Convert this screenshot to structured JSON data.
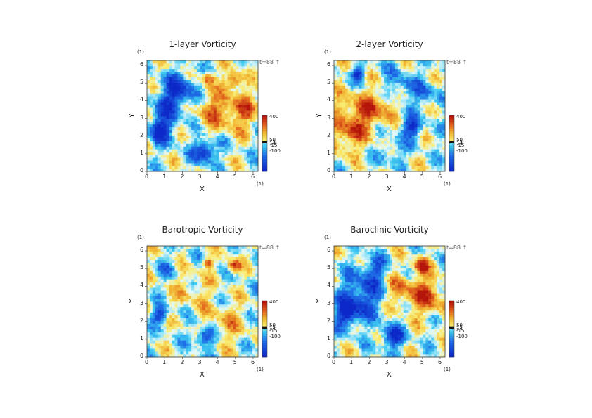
{
  "figure": {
    "panels": [
      {
        "title": "1-layer Vorticity",
        "variant": "layer1"
      },
      {
        "title": "2-layer Vorticity",
        "variant": "layer2"
      },
      {
        "title": "Barotropic Vorticity",
        "variant": "barotropic"
      },
      {
        "title": "Baroclinic Vorticity",
        "variant": "baroclinic"
      }
    ],
    "time_label": "t=88",
    "unit_label": "(1)"
  },
  "chart_data": [
    {
      "type": "heatmap",
      "title": "1-layer Vorticity",
      "xlabel": "X",
      "ylabel": "Y",
      "xlim": [
        0,
        6.28
      ],
      "ylim": [
        0,
        6.28
      ],
      "x_ticks": [
        "0",
        "1",
        "2",
        "3",
        "4",
        "5",
        "6"
      ],
      "y_ticks": [
        "0",
        "1",
        "2",
        "3",
        "4",
        "5",
        "6"
      ],
      "colorbar": {
        "min": -100,
        "max": 400,
        "labels": [
          "400",
          "50",
          "15",
          "14",
          "-15",
          "-100"
        ]
      },
      "colors": {
        "negative_strong": "#0b2fd0",
        "negative": "#33c8f0",
        "neutral": "#e8f8fb",
        "positive": "#f0c840",
        "positive_strong": "#c81e0a"
      }
    },
    {
      "type": "heatmap",
      "title": "2-layer Vorticity",
      "xlabel": "X",
      "ylabel": "Y",
      "xlim": [
        0,
        6.28
      ],
      "ylim": [
        0,
        6.28
      ],
      "x_ticks": [
        "0",
        "1",
        "2",
        "3",
        "4",
        "5",
        "6"
      ],
      "y_ticks": [
        "0",
        "1",
        "2",
        "3",
        "4",
        "5",
        "6"
      ],
      "colorbar": {
        "min": -100,
        "max": 400,
        "labels": [
          "400",
          "50",
          "15",
          "14",
          "-15",
          "-100"
        ]
      }
    },
    {
      "type": "heatmap",
      "title": "Barotropic Vorticity",
      "xlabel": "X",
      "ylabel": "Y",
      "xlim": [
        0,
        6.28
      ],
      "ylim": [
        0,
        6.28
      ],
      "x_ticks": [
        "0",
        "1",
        "2",
        "3",
        "4",
        "5",
        "6"
      ],
      "y_ticks": [
        "0",
        "1",
        "2",
        "3",
        "4",
        "5",
        "6"
      ],
      "colorbar": {
        "min": -100,
        "max": 400,
        "labels": [
          "400",
          "50",
          "15",
          "14",
          "-15",
          "-100"
        ]
      }
    },
    {
      "type": "heatmap",
      "title": "Baroclinic Vorticity",
      "xlabel": "X",
      "ylabel": "Y",
      "xlim": [
        0,
        6.28
      ],
      "ylim": [
        0,
        6.28
      ],
      "x_ticks": [
        "0",
        "1",
        "2",
        "3",
        "4",
        "5",
        "6"
      ],
      "y_ticks": [
        "0",
        "1",
        "2",
        "3",
        "4",
        "5",
        "6"
      ],
      "colorbar": {
        "min": -100,
        "max": 400,
        "labels": [
          "400",
          "50",
          "15",
          "14",
          "-15",
          "-100"
        ]
      }
    }
  ]
}
